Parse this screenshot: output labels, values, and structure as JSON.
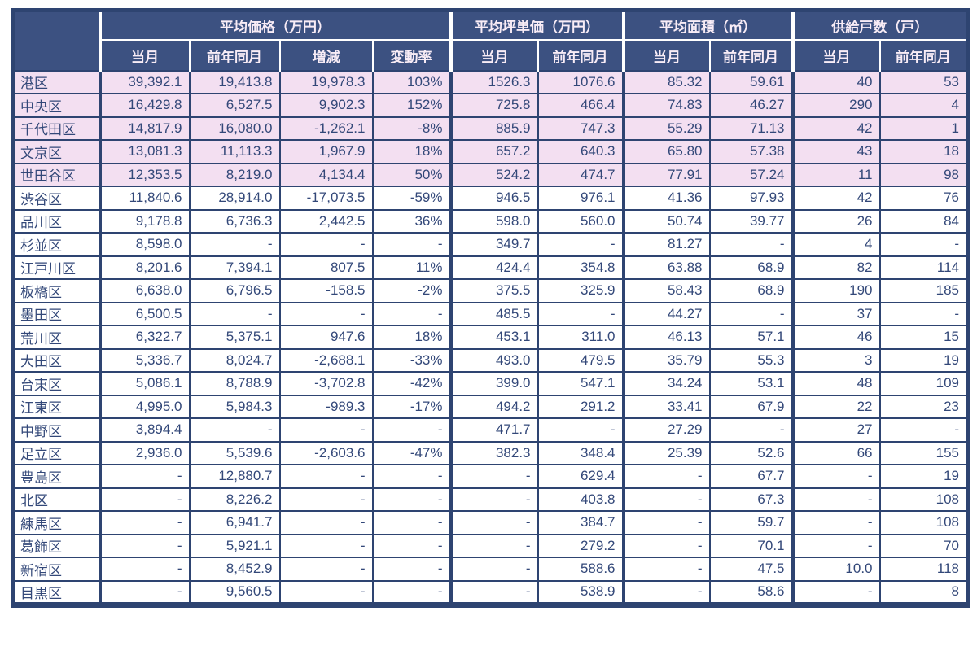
{
  "colors": {
    "header_background": "#3c5181",
    "border": "#2e4471",
    "highlight_row_pink": "#f3dff1",
    "text": "#334879",
    "header_text": "#f8ecf6"
  },
  "table": {
    "corner_label": "",
    "groups": [
      {
        "label": "平均価格（万円）",
        "cols": [
          "当月",
          "前年同月",
          "増減",
          "変動率"
        ]
      },
      {
        "label": "平均坪単価（万円）",
        "cols": [
          "当月",
          "前年同月"
        ]
      },
      {
        "label": "平均面積（㎡）",
        "cols": [
          "当月",
          "前年同月"
        ]
      },
      {
        "label": "供給戸数（戸）",
        "cols": [
          "当月",
          "前年同月"
        ]
      }
    ],
    "rows": [
      {
        "ward": "港区",
        "highlight": true,
        "values": [
          "39,392.1",
          "19,413.8",
          "19,978.3",
          "103%",
          "1526.3",
          "1076.6",
          "85.32",
          "59.61",
          "40",
          "53"
        ]
      },
      {
        "ward": "中央区",
        "highlight": true,
        "values": [
          "16,429.8",
          "6,527.5",
          "9,902.3",
          "152%",
          "725.8",
          "466.4",
          "74.83",
          "46.27",
          "290",
          "4"
        ]
      },
      {
        "ward": "千代田区",
        "highlight": true,
        "values": [
          "14,817.9",
          "16,080.0",
          "-1,262.1",
          "-8%",
          "885.9",
          "747.3",
          "55.29",
          "71.13",
          "42",
          "1"
        ]
      },
      {
        "ward": "文京区",
        "highlight": true,
        "values": [
          "13,081.3",
          "11,113.3",
          "1,967.9",
          "18%",
          "657.2",
          "640.3",
          "65.80",
          "57.38",
          "43",
          "18"
        ]
      },
      {
        "ward": "世田谷区",
        "highlight": true,
        "values": [
          "12,353.5",
          "8,219.0",
          "4,134.4",
          "50%",
          "524.2",
          "474.7",
          "77.91",
          "57.24",
          "11",
          "98"
        ]
      },
      {
        "ward": "渋谷区",
        "highlight": false,
        "values": [
          "11,840.6",
          "28,914.0",
          "-17,073.5",
          "-59%",
          "946.5",
          "976.1",
          "41.36",
          "97.93",
          "42",
          "76"
        ]
      },
      {
        "ward": "品川区",
        "highlight": false,
        "values": [
          "9,178.8",
          "6,736.3",
          "2,442.5",
          "36%",
          "598.0",
          "560.0",
          "50.74",
          "39.77",
          "26",
          "84"
        ]
      },
      {
        "ward": "杉並区",
        "highlight": false,
        "values": [
          "8,598.0",
          "-",
          "-",
          "-",
          "349.7",
          "-",
          "81.27",
          "-",
          "4",
          "-"
        ]
      },
      {
        "ward": "江戸川区",
        "highlight": false,
        "values": [
          "8,201.6",
          "7,394.1",
          "807.5",
          "11%",
          "424.4",
          "354.8",
          "63.88",
          "68.9",
          "82",
          "114"
        ]
      },
      {
        "ward": "板橋区",
        "highlight": false,
        "values": [
          "6,638.0",
          "6,796.5",
          "-158.5",
          "-2%",
          "375.5",
          "325.9",
          "58.43",
          "68.9",
          "190",
          "185"
        ]
      },
      {
        "ward": "墨田区",
        "highlight": false,
        "values": [
          "6,500.5",
          "-",
          "-",
          "-",
          "485.5",
          "-",
          "44.27",
          "-",
          "37",
          "-"
        ]
      },
      {
        "ward": "荒川区",
        "highlight": false,
        "values": [
          "6,322.7",
          "5,375.1",
          "947.6",
          "18%",
          "453.1",
          "311.0",
          "46.13",
          "57.1",
          "46",
          "15"
        ]
      },
      {
        "ward": "大田区",
        "highlight": false,
        "values": [
          "5,336.7",
          "8,024.7",
          "-2,688.1",
          "-33%",
          "493.0",
          "479.5",
          "35.79",
          "55.3",
          "3",
          "19"
        ]
      },
      {
        "ward": "台東区",
        "highlight": false,
        "values": [
          "5,086.1",
          "8,788.9",
          "-3,702.8",
          "-42%",
          "399.0",
          "547.1",
          "34.24",
          "53.1",
          "48",
          "109"
        ]
      },
      {
        "ward": "江東区",
        "highlight": false,
        "values": [
          "4,995.0",
          "5,984.3",
          "-989.3",
          "-17%",
          "494.2",
          "291.2",
          "33.41",
          "67.9",
          "22",
          "23"
        ]
      },
      {
        "ward": "中野区",
        "highlight": false,
        "values": [
          "3,894.4",
          "-",
          "-",
          "-",
          "471.7",
          "-",
          "27.29",
          "-",
          "27",
          "-"
        ]
      },
      {
        "ward": "足立区",
        "highlight": false,
        "values": [
          "2,936.0",
          "5,539.6",
          "-2,603.6",
          "-47%",
          "382.3",
          "348.4",
          "25.39",
          "52.6",
          "66",
          "155"
        ]
      },
      {
        "ward": "豊島区",
        "highlight": false,
        "values": [
          "-",
          "12,880.7",
          "-",
          "-",
          "-",
          "629.4",
          "-",
          "67.7",
          "-",
          "19"
        ]
      },
      {
        "ward": "北区",
        "highlight": false,
        "values": [
          "-",
          "8,226.2",
          "-",
          "-",
          "-",
          "403.8",
          "-",
          "67.3",
          "-",
          "108"
        ]
      },
      {
        "ward": "練馬区",
        "highlight": false,
        "values": [
          "-",
          "6,941.7",
          "-",
          "-",
          "-",
          "384.7",
          "-",
          "59.7",
          "-",
          "108"
        ]
      },
      {
        "ward": "葛飾区",
        "highlight": false,
        "values": [
          "-",
          "5,921.1",
          "-",
          "-",
          "-",
          "279.2",
          "-",
          "70.1",
          "-",
          "70"
        ]
      },
      {
        "ward": "新宿区",
        "highlight": false,
        "values": [
          "-",
          "8,452.9",
          "-",
          "-",
          "-",
          "588.6",
          "-",
          "47.5",
          "10.0",
          "118"
        ]
      },
      {
        "ward": "目黒区",
        "highlight": false,
        "values": [
          "-",
          "9,560.5",
          "-",
          "-",
          "-",
          "538.9",
          "-",
          "58.6",
          "-",
          "8"
        ]
      }
    ]
  }
}
